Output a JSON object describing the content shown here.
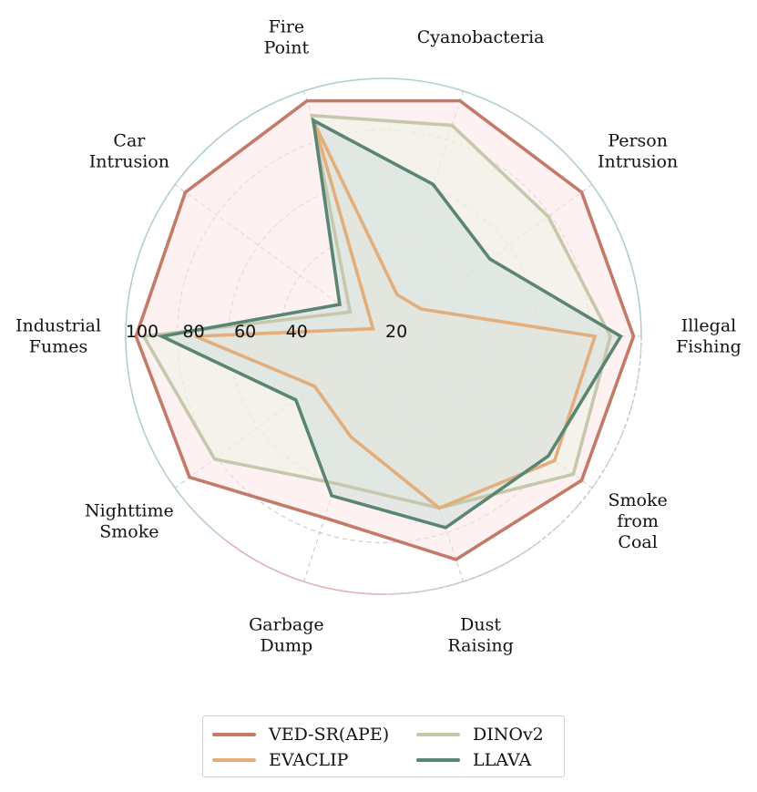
{
  "chart_data": {
    "type": "radar",
    "categories": [
      [
        "Cyanobacteria"
      ],
      [
        "Person",
        "Intrusion"
      ],
      [
        "Illegal",
        "Fishing"
      ],
      [
        "Smoke",
        "from",
        "Coal"
      ],
      [
        "Dust",
        "Raising"
      ],
      [
        "Garbage",
        "Dump"
      ],
      [
        "Nighttime",
        "Smoke"
      ],
      [
        "Industrial",
        "Fumes"
      ],
      [
        "Car",
        "Intrusion"
      ],
      [
        "Fire",
        "Point"
      ]
    ],
    "rlim": [
      0,
      100
    ],
    "rticks": [
      20,
      40,
      60,
      80,
      100
    ],
    "rtick_labels": [
      "20",
      "40",
      "60",
      "80",
      "100"
    ],
    "grid": true,
    "legend_position": "bottom",
    "series": [
      {
        "name": "VED-SR(APE)",
        "color": "#c47a68",
        "fill": "#fbe6e6",
        "values": [
          96,
          95,
          97,
          95,
          91,
          74,
          93,
          96,
          95,
          96
        ]
      },
      {
        "name": "DINOv2",
        "color": "#c5c8ad",
        "fill": "#eef0e5",
        "values": [
          86,
          79,
          88,
          91,
          70,
          60,
          81,
          93,
          16,
          90
        ]
      },
      {
        "name": "EVACLIP",
        "color": "#e2ae7c",
        "fill": "#fbeee0",
        "values": [
          17,
          18,
          82,
          82,
          70,
          41,
          33,
          73,
          5,
          87
        ]
      },
      {
        "name": "LLAVA",
        "color": "#5b8573",
        "fill": "#cfdfdb",
        "values": [
          62,
          51,
          92,
          79,
          78,
          65,
          42,
          86,
          21,
          88
        ]
      }
    ]
  }
}
